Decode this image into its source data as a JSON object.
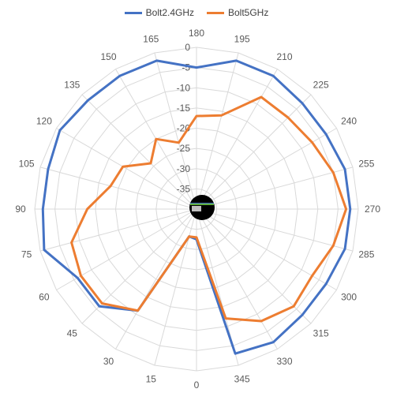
{
  "chart_data": {
    "type": "radar",
    "title": "",
    "categories": [
      "0",
      "15",
      "30",
      "45",
      "60",
      "75",
      "90",
      "105",
      "120",
      "135",
      "150",
      "165",
      "180",
      "195",
      "210",
      "225",
      "240",
      "255",
      "270",
      "285",
      "300",
      "315",
      "330",
      "345"
    ],
    "series": [
      {
        "name": "Bolt2.4GHz",
        "color": "#4472C4",
        "values": [
          -32.5,
          -33,
          -11,
          -6,
          -6,
          -1,
          -2,
          -2,
          -1,
          -2,
          -2,
          -2,
          -5,
          -2,
          -2,
          -3,
          -3,
          -2,
          -2,
          -2,
          -3,
          -3,
          -2,
          -3
        ]
      },
      {
        "name": "Bolt5GHz",
        "color": "#ED7D31",
        "values": [
          -33,
          -33,
          -11,
          -7,
          -7,
          -8,
          -13,
          -18,
          -19,
          -24,
          -20,
          -23,
          -17,
          -16,
          -8,
          -8,
          -7,
          -5,
          -3,
          -5,
          -7,
          -6,
          -8,
          -12
        ]
      }
    ],
    "rlim": [
      -40,
      0
    ],
    "rticks": [
      "0",
      "-5",
      "-10",
      "-15",
      "-20",
      "-25",
      "-30",
      "-35"
    ],
    "legend": "top",
    "grid": true
  }
}
